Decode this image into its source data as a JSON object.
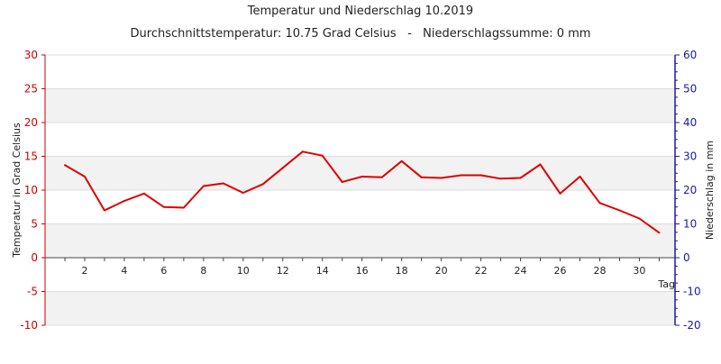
{
  "chart_data": {
    "type": "line",
    "title": "Temperatur und Niederschlag 10.2019",
    "subtitle": "Durchschnittstemperatur: 10.75 Grad Celsius   -   Niederschlagssumme: 0 mm",
    "xlabel": "Tag",
    "ylabel_left": "Temperatur in Grad Celsius",
    "ylabel_right": "Niederschlag in mm",
    "xlim": [
      0,
      31.8
    ],
    "ylim_left": [
      -10,
      30
    ],
    "ylim_right": [
      -20,
      60
    ],
    "x_ticks": [
      2,
      4,
      6,
      8,
      10,
      12,
      14,
      16,
      18,
      20,
      22,
      24,
      26,
      28,
      30
    ],
    "y_ticks_left": [
      -10,
      -5,
      0,
      5,
      10,
      15,
      20,
      25,
      30
    ],
    "y_ticks_right": [
      -20,
      -10,
      0,
      10,
      20,
      30,
      40,
      50,
      60
    ],
    "grid": true,
    "colors": {
      "temperature": "#dd0000",
      "left_axis": "#cc0000",
      "right_axis": "#1a1aaa",
      "band_shade": "#f2f2f2",
      "grid": "#dddddd"
    },
    "series": [
      {
        "key": "temperature",
        "axis": "left",
        "x": [
          1,
          2,
          3,
          4,
          5,
          6,
          7,
          8,
          9,
          10,
          11,
          12,
          13,
          14,
          15,
          16,
          17,
          18,
          19,
          20,
          21,
          22,
          23,
          24,
          25,
          26,
          27,
          28,
          29,
          30,
          31
        ],
        "values": [
          13.7,
          12.0,
          7.0,
          8.4,
          9.5,
          7.5,
          7.4,
          10.6,
          11.0,
          9.6,
          10.9,
          13.3,
          15.7,
          15.1,
          11.2,
          12.0,
          11.9,
          14.3,
          11.9,
          11.8,
          12.2,
          12.2,
          11.7,
          11.8,
          13.8,
          9.5,
          12.0,
          8.1,
          7.0,
          5.8,
          3.7
        ]
      }
    ]
  }
}
